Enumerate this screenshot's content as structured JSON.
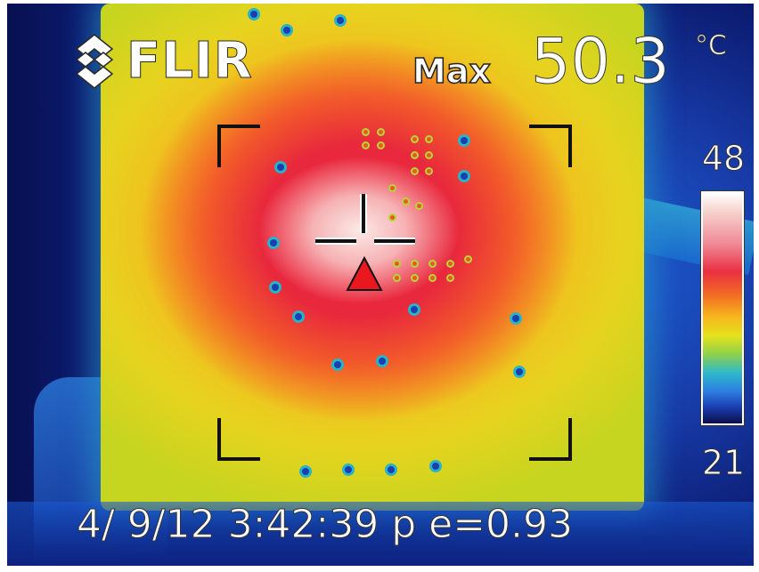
{
  "brand": {
    "logo_text": "FLIR"
  },
  "readout": {
    "max_label": "Max",
    "max_value": "50.3",
    "unit": "°C"
  },
  "scale": {
    "top": "48",
    "bottom": "21",
    "palette": [
      "#ffffff",
      "#f08a97",
      "#ea2f43",
      "#f26a24",
      "#f7b81c",
      "#e5e21d",
      "#2fb9c9",
      "#2d7fe0",
      "#1a3db0",
      "#0a0e4a"
    ]
  },
  "footer": {
    "text": "4/ 9/12  3:42:39 p e=0.93"
  },
  "overlay": {
    "crosshair_color": "#111111",
    "max_marker_color": "#e8181e",
    "icons": [
      "flir-logo-icon",
      "crosshair-icon",
      "max-temp-triangle-icon"
    ]
  }
}
